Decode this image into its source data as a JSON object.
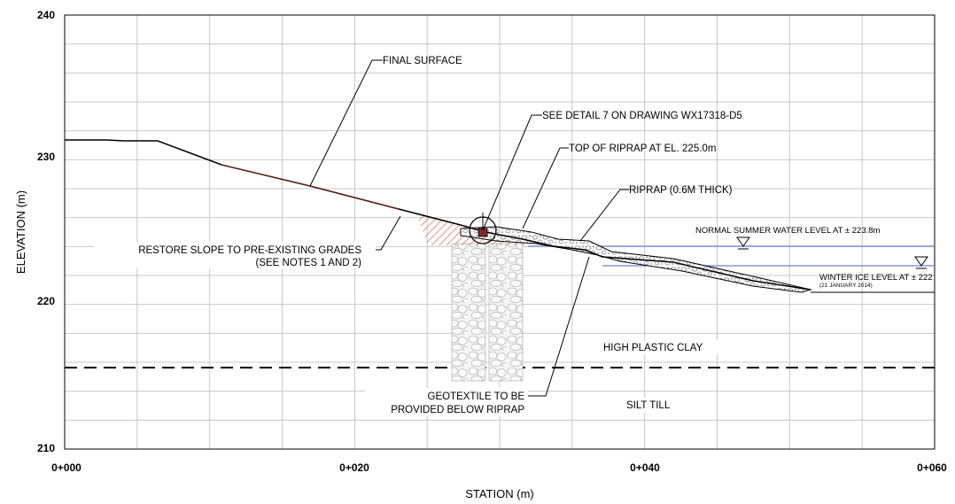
{
  "axes": {
    "x_title": "STATION (m)",
    "y_title": "ELEVATION (m)",
    "x_ticks": [
      "0+000",
      "0+020",
      "0+040",
      "0+060"
    ],
    "y_ticks": [
      "210",
      "220",
      "230",
      "240"
    ],
    "x_range_m": [
      0,
      60
    ],
    "y_range_m": [
      210,
      240
    ],
    "grid": "on"
  },
  "annotations": {
    "final_surface": "FINAL SURFACE",
    "see_detail": "SEE DETAIL 7 ON DRAWING WX17318-D5",
    "top_of_riprap": "TOP OF RIPRAP AT EL. 225.0m",
    "riprap": "RIPRAP (0.6M THICK)",
    "restore_line1": "RESTORE SLOPE TO PRE-EXISTING GRADES",
    "restore_line2": "(SEE NOTES 1 AND 2)",
    "summer_water": "NORMAL SUMMER WATER LEVEL AT ± 223.8m",
    "winter_ice": "WINTER ICE LEVEL AT ± 222",
    "winter_ice_date": "(21 JANUARY 2014)",
    "high_plastic_clay": "HIGH PLASTIC CLAY",
    "silt_till": "SILT TILL",
    "geotextile_line1": "GEOTEXTILE TO BE",
    "geotextile_line2": "PROVIDED BELOW RIPRAP"
  },
  "levels": {
    "summer_water_elev_m": 223.8,
    "winter_ice_elev_m": 222.4,
    "soil_boundary_elev_m": 215.5,
    "riprap_top_elev_m": 225.0
  },
  "colors": {
    "water_line": "#6f7fd6",
    "hatch": "#e05050",
    "grid": "#c8c8c8"
  }
}
